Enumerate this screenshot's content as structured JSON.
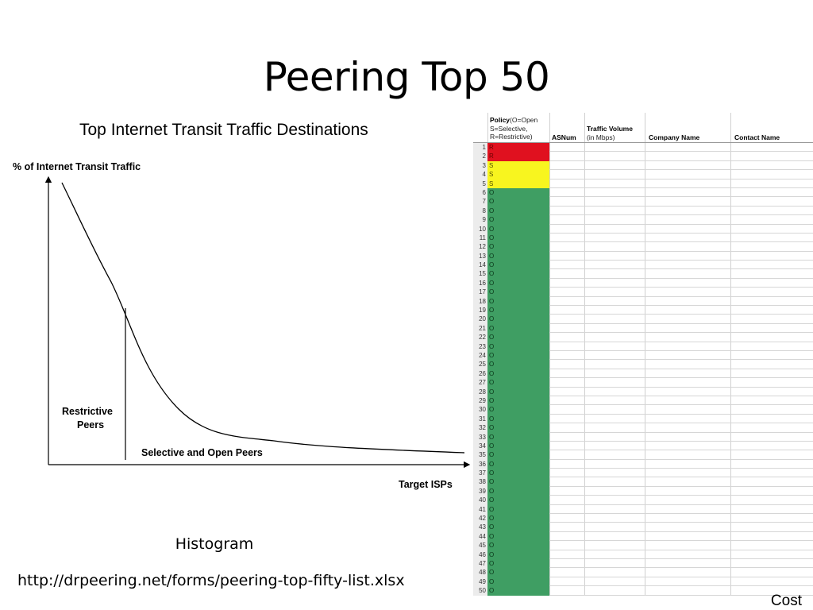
{
  "slide": {
    "title": "Peering Top 50",
    "caption": "Histogram",
    "url": "http://drpeering.net/forms/peering-top-fifty-list.xlsx",
    "corner_label": "Cost"
  },
  "diagram": {
    "title": "Top Internet Transit Traffic Destinations",
    "y_axis_label": "% of Internet Transit Traffic",
    "x_axis_label": "Target ISPs",
    "region_left_label_line1": "Restrictive",
    "region_left_label_line2": "Peers",
    "region_right_label": "Selective and Open Peers"
  },
  "sheet": {
    "headers": {
      "policy_bold": "Policy",
      "policy_line1_rest": "(O=Open",
      "policy_line2": "S=Selective,",
      "policy_line3": "R=Restrictive)",
      "asnum": "ASNum",
      "traffic_bold": "Traffic Volume",
      "traffic_sub": "(in Mbps)",
      "company": "Company Name",
      "contact": "Contact Name"
    },
    "policy_colors": {
      "R": "#e0111f",
      "S": "#f8f51f",
      "O": "#3f9e63"
    },
    "rows": [
      {
        "n": "1",
        "p": "R"
      },
      {
        "n": "2",
        "p": "R"
      },
      {
        "n": "3",
        "p": "S"
      },
      {
        "n": "4",
        "p": "S"
      },
      {
        "n": "5",
        "p": "S"
      },
      {
        "n": "6",
        "p": "O"
      },
      {
        "n": "7",
        "p": "O"
      },
      {
        "n": "8",
        "p": "O"
      },
      {
        "n": "9",
        "p": "O"
      },
      {
        "n": "10",
        "p": "O"
      },
      {
        "n": "11",
        "p": "O"
      },
      {
        "n": "12",
        "p": "O"
      },
      {
        "n": "13",
        "p": "O"
      },
      {
        "n": "14",
        "p": "O"
      },
      {
        "n": "15",
        "p": "O"
      },
      {
        "n": "16",
        "p": "O"
      },
      {
        "n": "17",
        "p": "O"
      },
      {
        "n": "18",
        "p": "O"
      },
      {
        "n": "19",
        "p": "O"
      },
      {
        "n": "20",
        "p": "O"
      },
      {
        "n": "21",
        "p": "O"
      },
      {
        "n": "22",
        "p": "O"
      },
      {
        "n": "23",
        "p": "O"
      },
      {
        "n": "24",
        "p": "O"
      },
      {
        "n": "25",
        "p": "O"
      },
      {
        "n": "26",
        "p": "O"
      },
      {
        "n": "27",
        "p": "O"
      },
      {
        "n": "28",
        "p": "O"
      },
      {
        "n": "29",
        "p": "O"
      },
      {
        "n": "30",
        "p": "O"
      },
      {
        "n": "31",
        "p": "O"
      },
      {
        "n": "32",
        "p": "O"
      },
      {
        "n": "33",
        "p": "O"
      },
      {
        "n": "34",
        "p": "O"
      },
      {
        "n": "35",
        "p": "O"
      },
      {
        "n": "36",
        "p": "O"
      },
      {
        "n": "37",
        "p": "O"
      },
      {
        "n": "38",
        "p": "O"
      },
      {
        "n": "39",
        "p": "O"
      },
      {
        "n": "40",
        "p": "O"
      },
      {
        "n": "41",
        "p": "O"
      },
      {
        "n": "42",
        "p": "O"
      },
      {
        "n": "43",
        "p": "O"
      },
      {
        "n": "44",
        "p": "O"
      },
      {
        "n": "45",
        "p": "O"
      },
      {
        "n": "46",
        "p": "O"
      },
      {
        "n": "47",
        "p": "O"
      },
      {
        "n": "48",
        "p": "O"
      },
      {
        "n": "49",
        "p": "O"
      },
      {
        "n": "50",
        "p": "O"
      }
    ]
  }
}
